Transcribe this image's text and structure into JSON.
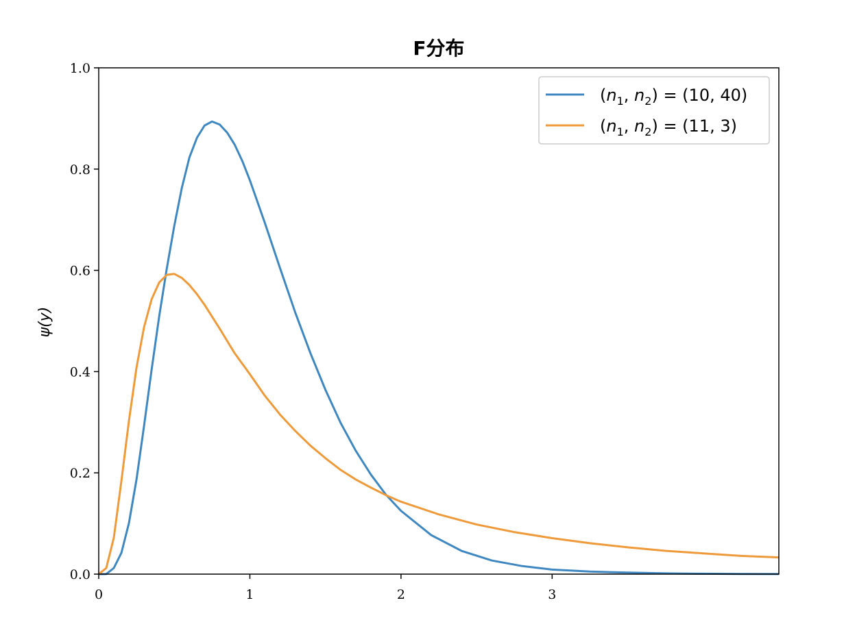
{
  "chart_data": {
    "type": "line",
    "title": "F分布",
    "xlabel": "",
    "ylabel": "ψ(y)",
    "xlim": [
      0,
      4.5
    ],
    "ylim": [
      0,
      1.0
    ],
    "xticks": [
      0,
      1,
      2,
      3
    ],
    "xtick_labels": [
      "0",
      "1",
      "2",
      "3"
    ],
    "yticks": [
      0.0,
      0.2,
      0.4,
      0.6,
      0.8,
      1.0
    ],
    "ytick_labels": [
      "0.0",
      "0.2",
      "0.4",
      "0.6",
      "0.8",
      "1.0"
    ],
    "grid": false,
    "legend_position": "top-right",
    "series": [
      {
        "name": "(n1, n2) = (10, 40)",
        "legend_parts": {
          "open": "(",
          "a": "n",
          "a_sub": "1",
          "sep": ", ",
          "b": "n",
          "b_sub": "2",
          "mid": ") = (",
          "v1": "10",
          "v2": "40",
          "close": ")"
        },
        "color": "#3f87c0",
        "x": [
          0,
          0.05,
          0.1,
          0.15,
          0.2,
          0.25,
          0.3,
          0.35,
          0.4,
          0.45,
          0.5,
          0.55,
          0.6,
          0.65,
          0.7,
          0.75,
          0.8,
          0.85,
          0.9,
          0.95,
          1.0,
          1.1,
          1.2,
          1.3,
          1.4,
          1.5,
          1.6,
          1.7,
          1.8,
          1.9,
          2.0,
          2.2,
          2.4,
          2.6,
          2.8,
          3.0,
          3.25,
          3.5,
          3.75,
          4.0,
          4.25,
          4.5
        ],
        "y": [
          0,
          0.0002,
          0.012,
          0.042,
          0.101,
          0.187,
          0.293,
          0.404,
          0.509,
          0.603,
          0.688,
          0.763,
          0.823,
          0.862,
          0.886,
          0.894,
          0.888,
          0.872,
          0.848,
          0.816,
          0.778,
          0.693,
          0.604,
          0.517,
          0.437,
          0.364,
          0.299,
          0.244,
          0.197,
          0.157,
          0.125,
          0.077,
          0.046,
          0.027,
          0.016,
          0.009,
          0.005,
          0.003,
          0.0015,
          0.0008,
          0.0004,
          0.0002
        ]
      },
      {
        "name": "(n1, n2) = (11, 3)",
        "legend_parts": {
          "open": "(",
          "a": "n",
          "a_sub": "1",
          "sep": ", ",
          "b": "n",
          "b_sub": "2",
          "mid": ") = (",
          "v1": "11",
          "v2": "3",
          "close": ")"
        },
        "color": "#ef9a3a",
        "x": [
          0,
          0.05,
          0.1,
          0.15,
          0.2,
          0.25,
          0.3,
          0.35,
          0.4,
          0.45,
          0.5,
          0.55,
          0.6,
          0.65,
          0.7,
          0.8,
          0.9,
          1.0,
          1.1,
          1.2,
          1.3,
          1.4,
          1.5,
          1.6,
          1.7,
          1.8,
          1.9,
          2.0,
          2.25,
          2.5,
          2.75,
          3.0,
          3.25,
          3.5,
          3.75,
          4.0,
          4.25,
          4.5
        ],
        "y": [
          0,
          0.012,
          0.072,
          0.184,
          0.303,
          0.408,
          0.488,
          0.543,
          0.576,
          0.591,
          0.593,
          0.585,
          0.571,
          0.553,
          0.532,
          0.485,
          0.436,
          0.395,
          0.352,
          0.315,
          0.283,
          0.254,
          0.229,
          0.206,
          0.187,
          0.171,
          0.156,
          0.143,
          0.118,
          0.098,
          0.083,
          0.071,
          0.061,
          0.053,
          0.046,
          0.041,
          0.036,
          0.033
        ]
      }
    ]
  }
}
